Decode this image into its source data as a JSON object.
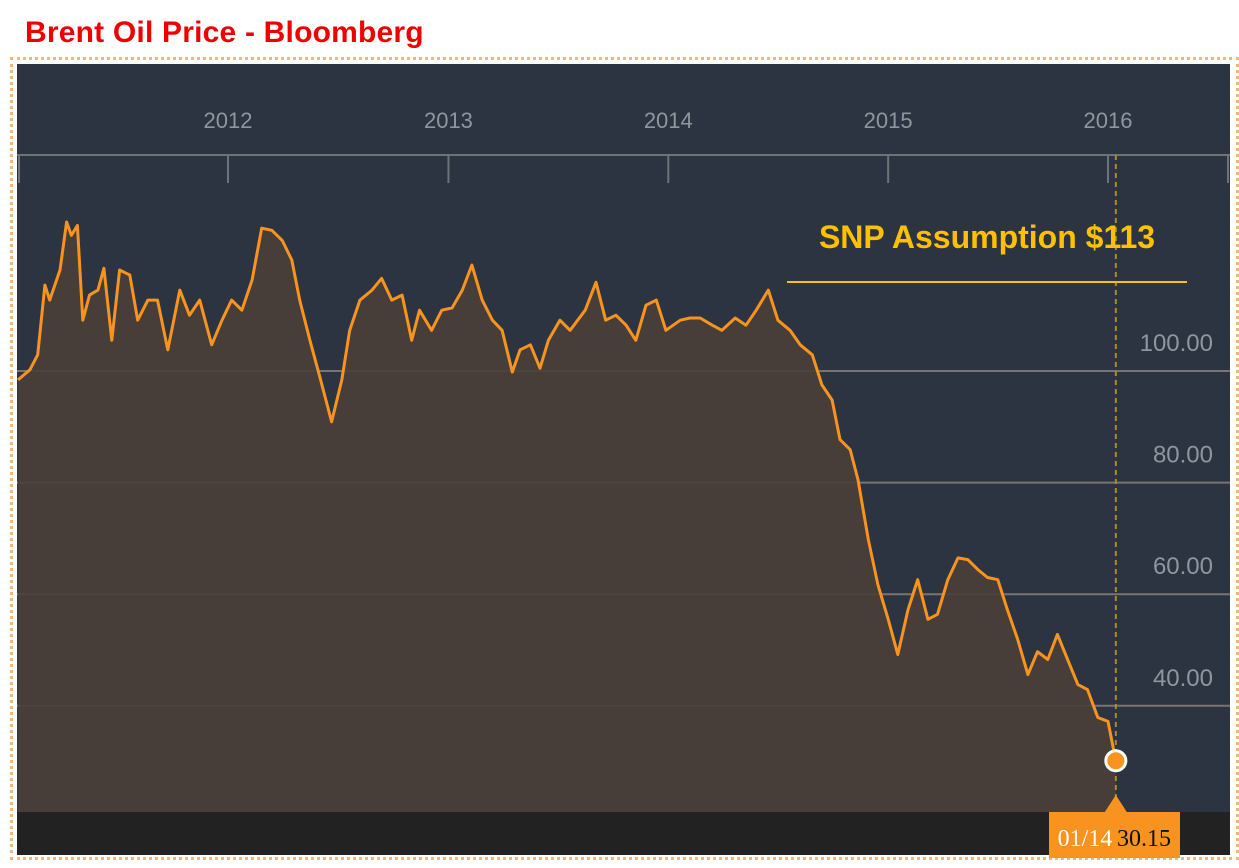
{
  "title": "Brent Oil Price - Bloomberg",
  "colors": {
    "title": "#f00000",
    "background": "#2b3440",
    "area": "#4a3f38",
    "line": "#f7931e",
    "annotation": "#ffc000",
    "grid": "#7a7470"
  },
  "chart_data": {
    "type": "area",
    "title": "",
    "xlabel": "",
    "ylabel": "",
    "x_ticks": [
      "2012",
      "2013",
      "2014",
      "2015",
      "2016"
    ],
    "y_ticks": [
      40,
      60,
      80,
      100
    ],
    "y_tick_labels": [
      "40.00",
      "60.00",
      "80.00",
      "100.00"
    ],
    "y_axis_position": "right",
    "grid": true,
    "annotation": {
      "label": "SNP Assumption $113",
      "value": 113
    },
    "last_point": {
      "date_label": "01/14",
      "value_label": "30.15"
    },
    "series": [
      {
        "x": [
          "2011-01-17",
          "2011-02-06",
          "2011-02-19",
          "2011-03-03",
          "2011-03-11",
          "2011-03-28",
          "2011-04-08",
          "2011-04-16",
          "2011-04-26",
          "2011-05-05",
          "2011-05-16",
          "2011-05-30",
          "2011-06-09",
          "2011-06-22",
          "2011-07-05",
          "2011-07-22",
          "2011-08-04",
          "2011-08-21",
          "2011-09-06",
          "2011-09-23",
          "2011-10-13",
          "2011-10-29",
          "2011-11-15",
          "2011-12-05",
          "2011-12-22",
          "2012-01-07",
          "2012-01-24",
          "2012-02-10",
          "2012-02-26",
          "2012-03-14",
          "2012-03-31",
          "2012-04-16",
          "2012-04-29",
          "2012-05-16",
          "2012-06-02",
          "2012-06-21",
          "2012-07-08",
          "2012-07-21",
          "2012-08-07",
          "2012-08-27",
          "2012-09-12",
          "2012-09-29",
          "2012-10-16",
          "2012-11-01",
          "2012-11-14",
          "2012-12-04",
          "2012-12-21",
          "2013-01-07",
          "2013-01-24",
          "2013-02-09",
          "2013-02-26",
          "2013-03-15",
          "2013-03-31",
          "2013-04-17",
          "2013-04-30",
          "2013-05-17",
          "2013-06-02",
          "2013-06-16",
          "2013-07-05",
          "2013-07-22",
          "2013-08-16",
          "2013-09-03",
          "2013-09-19",
          "2013-10-06",
          "2013-10-23",
          "2013-11-08",
          "2013-11-25",
          "2013-12-12",
          "2013-12-28",
          "2014-01-21",
          "2014-02-06",
          "2014-02-23",
          "2014-03-15",
          "2014-03-31",
          "2014-04-22",
          "2014-05-10",
          "2014-05-27",
          "2014-06-16",
          "2014-07-02",
          "2014-07-22",
          "2014-08-08",
          "2014-08-28",
          "2014-09-13",
          "2014-09-30",
          "2014-10-13",
          "2014-10-30",
          "2014-11-12",
          "2014-11-29",
          "2014-12-15",
          "2015-01-01",
          "2015-01-17",
          "2015-02-03",
          "2015-02-19",
          "2015-03-08",
          "2015-03-24",
          "2015-04-10",
          "2015-04-27",
          "2015-05-13",
          "2015-05-30",
          "2015-06-15",
          "2015-07-02",
          "2015-07-18",
          "2015-08-04",
          "2015-08-21",
          "2015-09-06",
          "2015-09-23",
          "2015-10-09",
          "2015-10-26",
          "2015-11-12",
          "2015-11-28",
          "2015-12-15",
          "2016-01-01",
          "2016-01-14"
        ],
        "y": [
          98.4,
          100.2,
          102.9,
          115.4,
          112.7,
          118.1,
          126.7,
          124.3,
          126.1,
          109.1,
          113.6,
          114.5,
          118.4,
          105.5,
          118.1,
          117.2,
          109.1,
          112.7,
          112.7,
          103.8,
          114.5,
          110.0,
          112.7,
          104.7,
          109.1,
          112.7,
          110.9,
          116.3,
          125.6,
          125.2,
          123.4,
          119.9,
          112.7,
          105.5,
          98.7,
          90.9,
          98.4,
          107.3,
          112.7,
          114.5,
          116.6,
          112.7,
          113.6,
          105.5,
          110.9,
          107.3,
          110.9,
          111.3,
          114.5,
          119.0,
          112.7,
          109.1,
          107.3,
          99.8,
          103.8,
          104.7,
          100.5,
          105.5,
          109.1,
          107.3,
          110.9,
          115.9,
          109.1,
          110.0,
          108.2,
          105.5,
          111.8,
          112.7,
          107.3,
          109.1,
          109.5,
          109.5,
          108.2,
          107.3,
          109.5,
          108.2,
          110.9,
          114.5,
          109.1,
          107.3,
          104.7,
          102.9,
          97.5,
          94.8,
          87.7,
          85.9,
          80.5,
          69.8,
          61.7,
          55.5,
          49.2,
          57.2,
          62.6,
          55.5,
          56.4,
          62.6,
          66.5,
          66.2,
          64.4,
          63.0,
          62.6,
          57.2,
          51.9,
          45.6,
          49.7,
          48.3,
          52.8,
          48.3,
          43.8,
          42.9,
          37.9,
          37.2,
          30.15
        ]
      }
    ]
  }
}
